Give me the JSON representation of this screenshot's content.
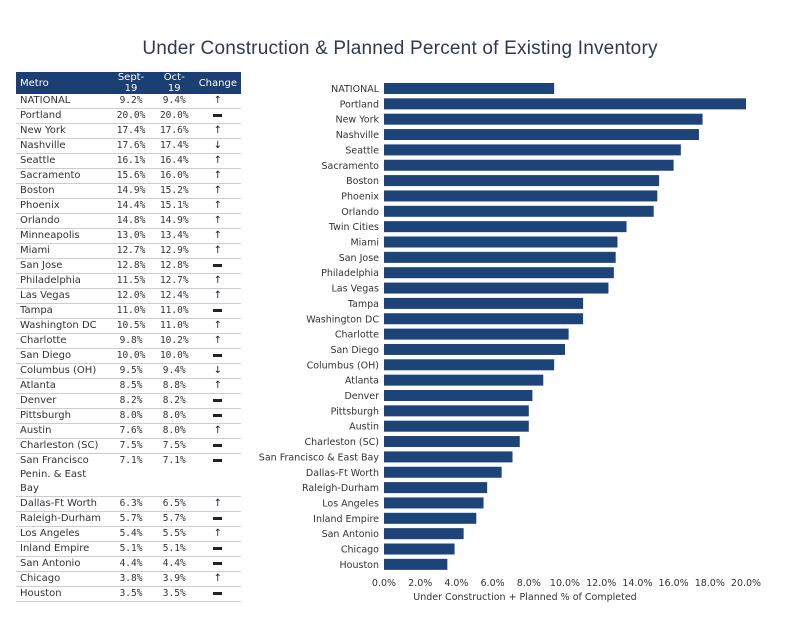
{
  "title": "Under Construction & Planned Percent of Existing Inventory",
  "table": {
    "headers": [
      "Metro",
      "Sept-19",
      "Oct-19",
      "Change"
    ],
    "rows": [
      {
        "metro": "NATIONAL",
        "sep": "9.2%",
        "oct": "9.4%",
        "change": "up"
      },
      {
        "metro": "Portland",
        "sep": "20.0%",
        "oct": "20.0%",
        "change": "flat"
      },
      {
        "metro": "New York",
        "sep": "17.4%",
        "oct": "17.6%",
        "change": "up"
      },
      {
        "metro": "Nashville",
        "sep": "17.6%",
        "oct": "17.4%",
        "change": "down"
      },
      {
        "metro": "Seattle",
        "sep": "16.1%",
        "oct": "16.4%",
        "change": "up"
      },
      {
        "metro": "Sacramento",
        "sep": "15.6%",
        "oct": "16.0%",
        "change": "up"
      },
      {
        "metro": "Boston",
        "sep": "14.9%",
        "oct": "15.2%",
        "change": "up"
      },
      {
        "metro": "Phoenix",
        "sep": "14.4%",
        "oct": "15.1%",
        "change": "up"
      },
      {
        "metro": "Orlando",
        "sep": "14.8%",
        "oct": "14.9%",
        "change": "up"
      },
      {
        "metro": "Minneapolis",
        "sep": "13.0%",
        "oct": "13.4%",
        "change": "up"
      },
      {
        "metro": "Miami",
        "sep": "12.7%",
        "oct": "12.9%",
        "change": "up"
      },
      {
        "metro": "San Jose",
        "sep": "12.8%",
        "oct": "12.8%",
        "change": "flat"
      },
      {
        "metro": "Philadelphia",
        "sep": "11.5%",
        "oct": "12.7%",
        "change": "up"
      },
      {
        "metro": "Las Vegas",
        "sep": "12.0%",
        "oct": "12.4%",
        "change": "up"
      },
      {
        "metro": "Tampa",
        "sep": "11.0%",
        "oct": "11.0%",
        "change": "flat"
      },
      {
        "metro": "Washington DC",
        "sep": "10.5%",
        "oct": "11.0%",
        "change": "up"
      },
      {
        "metro": "Charlotte",
        "sep": "9.8%",
        "oct": "10.2%",
        "change": "up"
      },
      {
        "metro": "San Diego",
        "sep": "10.0%",
        "oct": "10.0%",
        "change": "flat"
      },
      {
        "metro": "Columbus (OH)",
        "sep": "9.5%",
        "oct": "9.4%",
        "change": "down"
      },
      {
        "metro": "Atlanta",
        "sep": "8.5%",
        "oct": "8.8%",
        "change": "up"
      },
      {
        "metro": "Denver",
        "sep": "8.2%",
        "oct": "8.2%",
        "change": "flat"
      },
      {
        "metro": "Pittsburgh",
        "sep": "8.0%",
        "oct": "8.0%",
        "change": "flat"
      },
      {
        "metro": "Austin",
        "sep": "7.6%",
        "oct": "8.0%",
        "change": "up"
      },
      {
        "metro": "Charleston (SC)",
        "sep": "7.5%",
        "oct": "7.5%",
        "change": "flat"
      },
      {
        "metro": "San Francisco\nPenin. & East Bay",
        "sep": "7.1%",
        "oct": "7.1%",
        "change": "flat",
        "tall": true
      },
      {
        "metro": "Dallas-Ft Worth",
        "sep": "6.3%",
        "oct": "6.5%",
        "change": "up"
      },
      {
        "metro": "Raleigh-Durham",
        "sep": "5.7%",
        "oct": "5.7%",
        "change": "flat"
      },
      {
        "metro": "Los Angeles",
        "sep": "5.4%",
        "oct": "5.5%",
        "change": "up"
      },
      {
        "metro": "Inland Empire",
        "sep": "5.1%",
        "oct": "5.1%",
        "change": "flat"
      },
      {
        "metro": "San Antonio",
        "sep": "4.4%",
        "oct": "4.4%",
        "change": "flat"
      },
      {
        "metro": "Chicago",
        "sep": "3.8%",
        "oct": "3.9%",
        "change": "up"
      },
      {
        "metro": "Houston",
        "sep": "3.5%",
        "oct": "3.5%",
        "change": "flat"
      }
    ]
  },
  "chart_data": {
    "type": "bar",
    "orientation": "horizontal",
    "categories": [
      "NATIONAL",
      "Portland",
      "New York",
      "Nashville",
      "Seattle",
      "Sacramento",
      "Boston",
      "Phoenix",
      "Orlando",
      "Twin Cities",
      "Miami",
      "San Jose",
      "Philadelphia",
      "Las Vegas",
      "Tampa",
      "Washington DC",
      "Charlotte",
      "San Diego",
      "Columbus (OH)",
      "Atlanta",
      "Denver",
      "Pittsburgh",
      "Austin",
      "Charleston (SC)",
      "San Francisco & East Bay",
      "Dallas-Ft Worth",
      "Raleigh-Durham",
      "Los Angeles",
      "Inland Empire",
      "San Antonio",
      "Chicago",
      "Houston"
    ],
    "values": [
      9.4,
      20.0,
      17.6,
      17.4,
      16.4,
      16.0,
      15.2,
      15.1,
      14.9,
      13.4,
      12.9,
      12.8,
      12.7,
      12.4,
      11.0,
      11.0,
      10.2,
      10.0,
      9.4,
      8.8,
      8.2,
      8.0,
      8.0,
      7.5,
      7.1,
      6.5,
      5.7,
      5.5,
      5.1,
      4.4,
      3.9,
      3.5
    ],
    "xticks": [
      "0.0%",
      "2.0%",
      "4.0%",
      "6.0%",
      "8.0%",
      "10.0%",
      "12.0%",
      "14.0%",
      "16.0%",
      "18.0%",
      "20.0%"
    ],
    "xlim": [
      0,
      20
    ],
    "xlabel": "Under Construction + Planned % of Completed",
    "ylabel": "",
    "bar_color": "#1d4478",
    "grid": false
  }
}
